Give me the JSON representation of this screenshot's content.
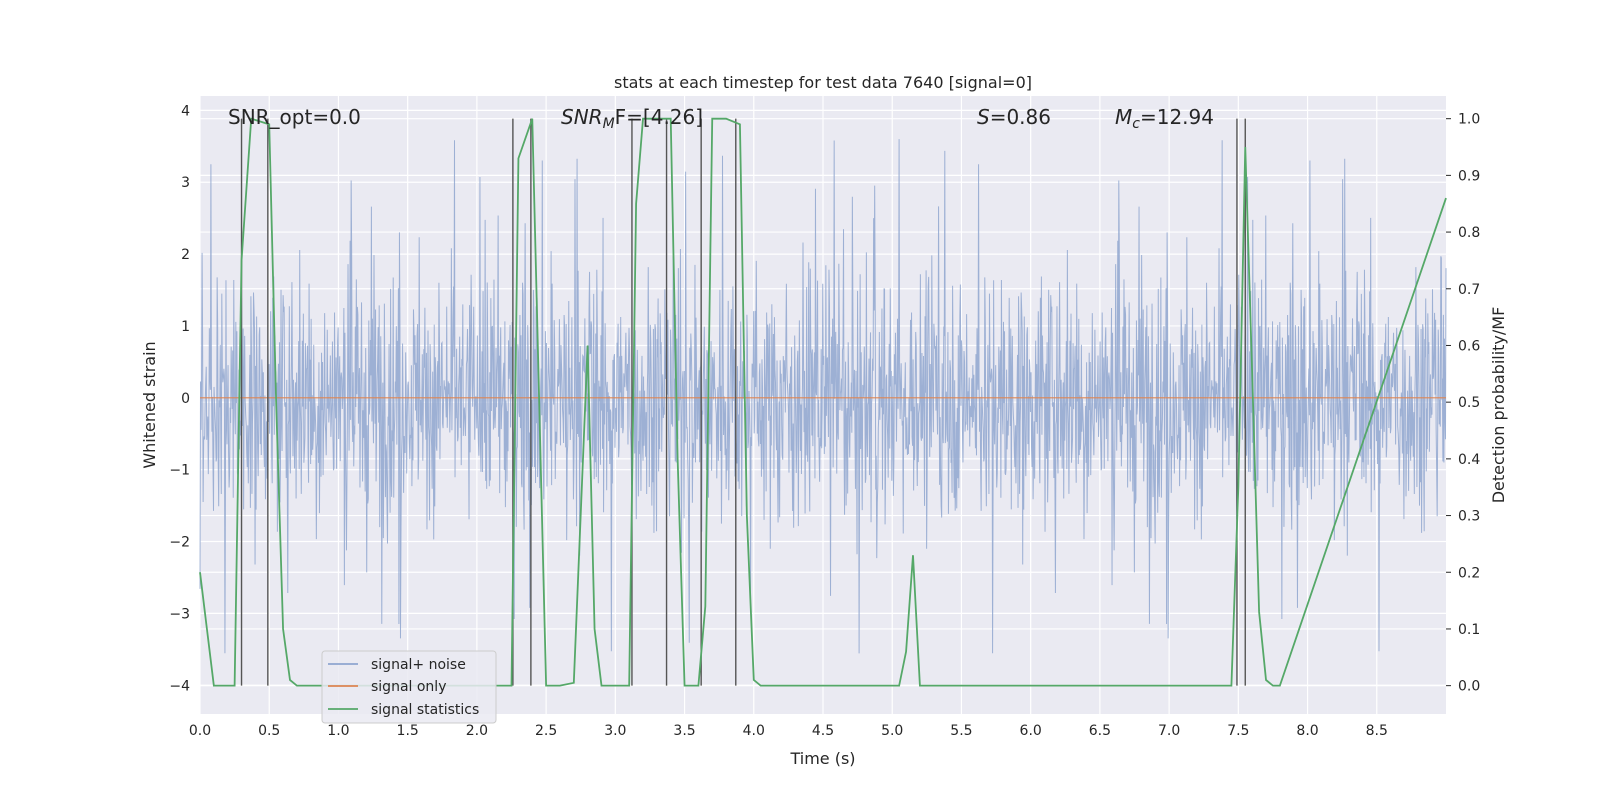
{
  "chart_data": {
    "type": "line",
    "title": "stats at each timestep for test data 7640 [signal=0]",
    "xlabel": "Time (s)",
    "ylabel": "Whitened strain",
    "y2label": "Detection probability/MF",
    "xlim": [
      0.0,
      9.0
    ],
    "ylim": [
      -4.4,
      4.2
    ],
    "y2lim": [
      -0.05,
      1.04
    ],
    "xticks": [
      "0.0",
      "0.5",
      "1.0",
      "1.5",
      "2.0",
      "2.5",
      "3.0",
      "3.5",
      "4.0",
      "4.5",
      "5.0",
      "5.5",
      "6.0",
      "6.5",
      "7.0",
      "7.5",
      "8.0",
      "8.5"
    ],
    "yticks": [
      "4",
      "3",
      "2",
      "1",
      "0",
      "−1",
      "−2",
      "−3",
      "−4"
    ],
    "y2ticks": [
      "1.0",
      "0.9",
      "0.8",
      "0.7",
      "0.6",
      "0.5",
      "0.4",
      "0.3",
      "0.2",
      "0.1",
      "0.0"
    ],
    "grid": true,
    "legend_position": "lower-left",
    "annotations": {
      "snr_opt": "SNR_opt=0.0",
      "snr_mf_base": "SNR",
      "snr_mf_sub": "M",
      "snr_mf_rest": "F=[4.26]",
      "s_label": "S",
      "s_rest": "=0.86",
      "mc_base": "M",
      "mc_sub": "c",
      "mc_rest": "=12.94"
    },
    "series": [
      {
        "name": "signal+ noise",
        "color": "#8fa6cf",
        "envelope": {
          "typical_amplitude": 1.5,
          "peak_amplitude": 3.7,
          "min_value": -4.0,
          "max_value": 3.7
        }
      },
      {
        "name": "signal only",
        "color": "#dd8452",
        "x": [
          0.0,
          9.0
        ],
        "y": [
          0.0,
          0.0
        ]
      },
      {
        "name": "signal statistics",
        "color": "#55a868",
        "x": [
          0.0,
          0.05,
          0.1,
          0.25,
          0.3,
          0.37,
          0.5,
          0.55,
          0.6,
          0.65,
          0.7,
          1.0,
          2.25,
          2.3,
          2.4,
          2.45,
          2.5,
          2.6,
          2.7,
          2.8,
          2.85,
          2.9,
          3.0,
          3.1,
          3.15,
          3.2,
          3.4,
          3.45,
          3.5,
          3.55,
          3.6,
          3.65,
          3.7,
          3.8,
          3.9,
          3.95,
          4.0,
          4.05,
          5.05,
          5.1,
          5.15,
          5.2,
          7.45,
          7.5,
          7.55,
          7.6,
          7.65,
          7.7,
          7.75,
          7.8,
          9.0
        ],
        "y": [
          0.2,
          0.1,
          0.0,
          0.0,
          0.75,
          1.0,
          0.99,
          0.5,
          0.1,
          0.01,
          0.0,
          0.0,
          0.0,
          0.93,
          1.0,
          0.5,
          0.0,
          0.0,
          0.005,
          0.6,
          0.1,
          0.0,
          0.0,
          0.0,
          0.85,
          1.0,
          1.0,
          0.4,
          0.0,
          0.0,
          0.0,
          0.14,
          1.0,
          1.0,
          0.99,
          0.3,
          0.01,
          0.0,
          0.0,
          0.06,
          0.23,
          0.0,
          0.0,
          0.35,
          0.95,
          0.55,
          0.13,
          0.01,
          0.0,
          0.0,
          0.86
        ]
      }
    ],
    "vertical_lines_x": [
      0.3,
      0.49,
      2.26,
      2.39,
      3.12,
      3.37,
      3.62,
      3.87,
      7.49,
      7.55
    ]
  }
}
